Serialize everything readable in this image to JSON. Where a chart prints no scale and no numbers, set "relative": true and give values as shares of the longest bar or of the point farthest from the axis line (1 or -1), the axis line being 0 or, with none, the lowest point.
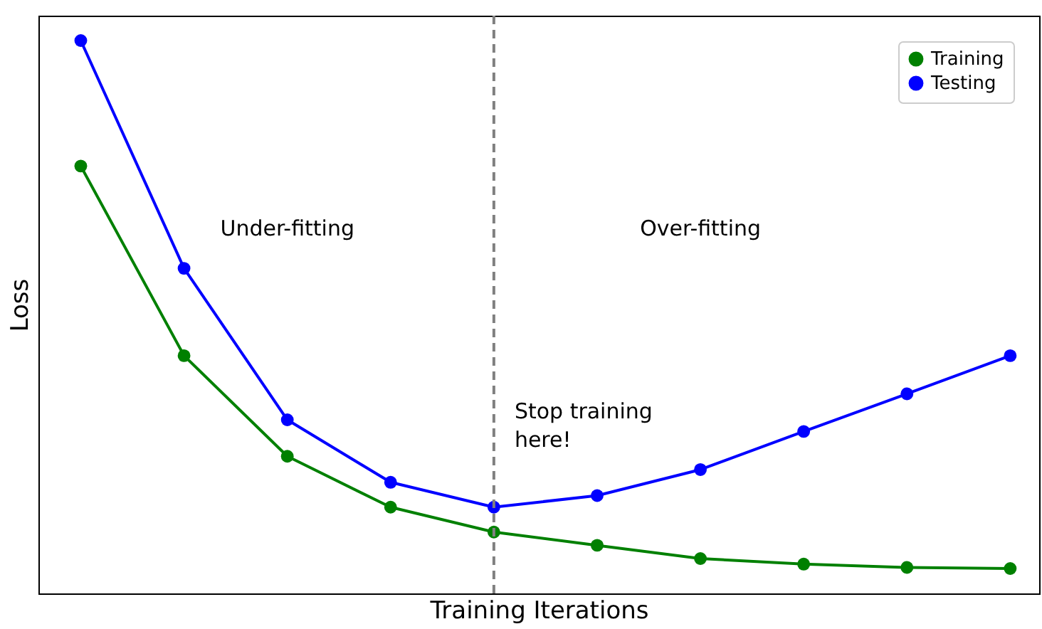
{
  "chart_data": {
    "type": "line",
    "relative": true,
    "xlabel": "Training Iterations",
    "ylabel": "Loss",
    "categories": [
      null,
      null,
      null,
      null,
      null,
      null,
      null,
      null,
      null,
      null
    ],
    "series": [
      {
        "name": "Training",
        "color": "#008000",
        "values": [
          0.773,
          0.43,
          0.248,
          0.156,
          0.111,
          0.087,
          0.063,
          0.053,
          0.047,
          0.045
        ]
      },
      {
        "name": "Testing",
        "color": "#0000ff",
        "values": [
          1.0,
          0.588,
          0.314,
          0.201,
          0.156,
          0.177,
          0.224,
          0.293,
          0.361,
          0.43
        ]
      }
    ],
    "annotations": [
      "Under-fitting",
      "Over-fitting",
      "Stop training\nhere!"
    ],
    "marker": "circle",
    "line_style": "solid",
    "legend": "top right"
  }
}
